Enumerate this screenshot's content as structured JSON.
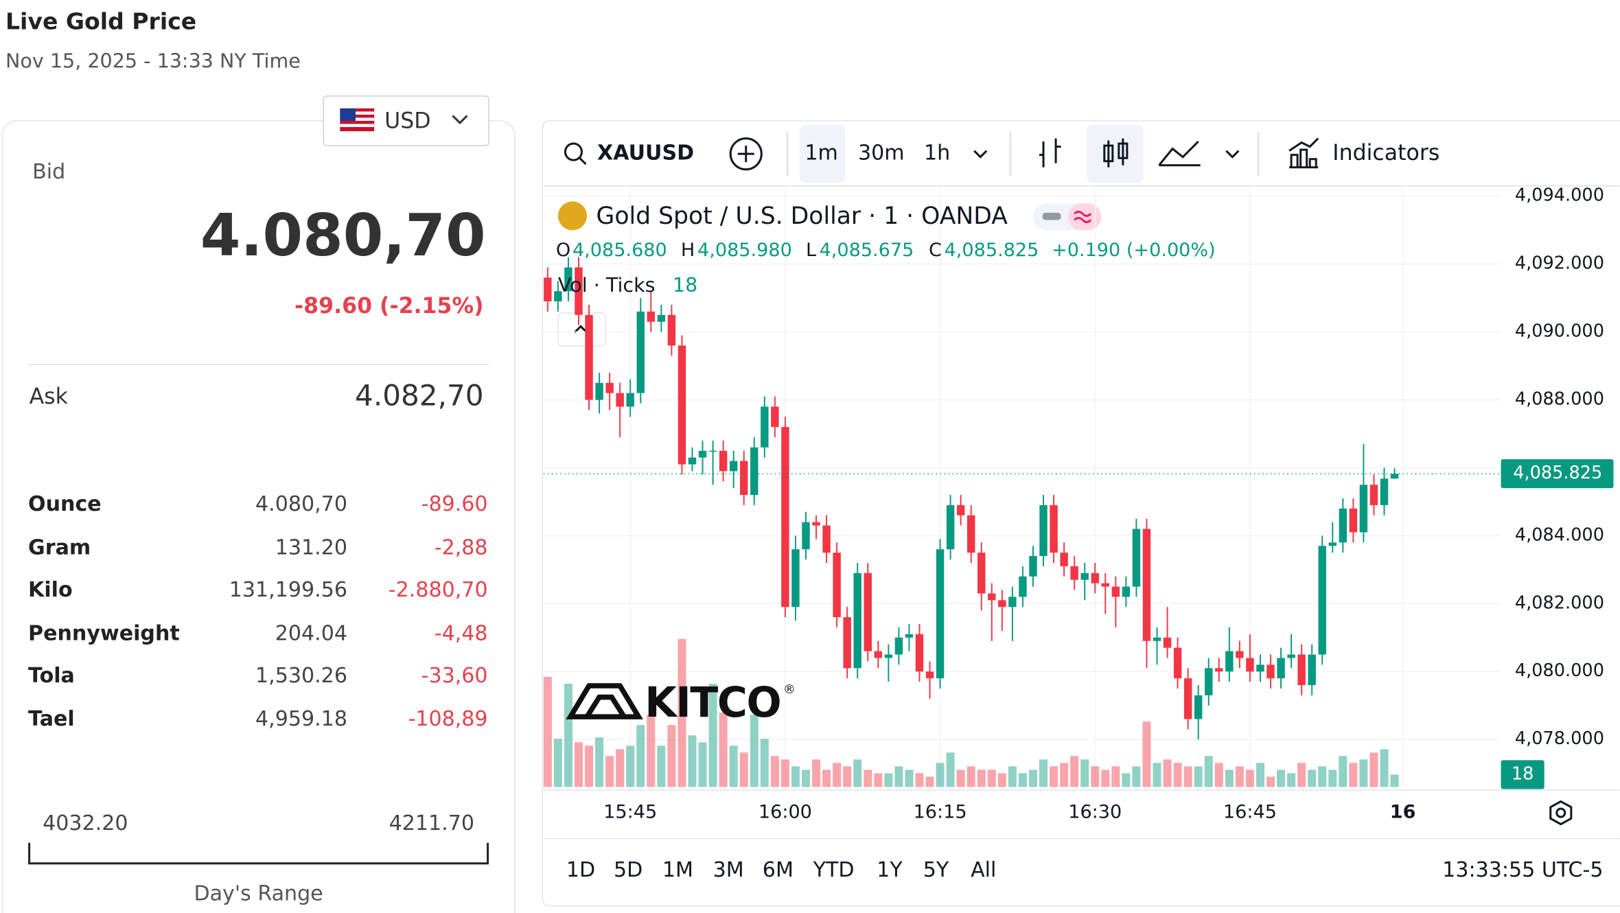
{
  "header": {
    "title": "Live Gold Price",
    "subtitle": "Nov 15, 2025 - 13:33 NY Time"
  },
  "currency": "USD",
  "quote": {
    "bid_label": "Bid",
    "bid": "4.080,70",
    "change": "-89.60 (-2.15%)",
    "ask_label": "Ask",
    "ask": "4.082,70"
  },
  "table": {
    "rows": [
      [
        "Ounce",
        "4.080,70",
        "-89.60"
      ],
      [
        "Gram",
        "131.20",
        "-2,88"
      ],
      [
        "Kilo",
        "131,199.56",
        "-2.880,70"
      ],
      [
        "Pennyweight",
        "204.04",
        "-4,48"
      ],
      [
        "Tola",
        "1,530.26",
        "-33,60"
      ],
      [
        "Tael",
        "4,959.18",
        "-108,89"
      ]
    ]
  },
  "range": {
    "low": "4032.20",
    "high": "4211.70",
    "label": "Day's Range"
  },
  "toolbar": {
    "symbol": "XAUUSD",
    "intervals": [
      "1m",
      "30m",
      "1h"
    ],
    "indicators": "Indicators"
  },
  "logo": {
    "text": "KITCO",
    "mark": "®"
  },
  "ranges": [
    "1D",
    "5D",
    "1M",
    "3M",
    "6M",
    "YTD",
    "1Y",
    "5Y",
    "All"
  ],
  "clock": "13:33:55 UTC-5",
  "chart_data": {
    "type": "candlestick",
    "title": "Gold Spot / U.S. Dollar · 1 · OANDA",
    "legend": {
      "o": "O",
      "open": "4,085.680",
      "h": "H",
      "high": "4,085.980",
      "l": "L",
      "low": "4,085.675",
      "c": "C",
      "close": "4,085.825",
      "change": "+0.190 (+0.00%)",
      "vol_label": "Vol · Ticks",
      "vol": "18"
    },
    "last_price_label": "4,085.825",
    "last_volume_label": "18",
    "up_color": "#089981",
    "down_color": "#f23645",
    "open": [
      4091.6,
      4090.9,
      4091.2,
      4091.9,
      4090.5,
      4088.0,
      4088.5,
      4088.2,
      4087.8,
      4088.2,
      4090.6,
      4090.3,
      4090.5,
      4089.6,
      4086.1,
      4086.3,
      4086.5,
      4086.5,
      4085.9,
      4086.2,
      4085.2,
      4086.6,
      4087.8,
      4087.2,
      4081.9,
      4083.6,
      4084.4,
      4084.3,
      4083.5,
      4081.6,
      4080.1,
      4082.9,
      4080.6,
      4080.4,
      4080.5,
      4081.0,
      4081.1,
      4080.0,
      4079.8,
      4083.6,
      4084.9,
      4084.6,
      4083.5,
      4082.3,
      4082.1,
      4081.9,
      4082.2,
      4082.8,
      4083.4,
      4084.9,
      4083.5,
      4083.1,
      4082.7,
      4082.9,
      4082.6,
      4082.5,
      4082.2,
      4082.5,
      4084.2,
      4080.9,
      4081.0,
      4080.7,
      4079.8,
      4078.6,
      4079.3,
      4080.1,
      4080.0,
      4080.6,
      4080.4,
      4080.0,
      4080.2,
      4079.8,
      4080.4,
      4080.5,
      4079.6,
      4080.5,
      4083.7,
      4083.8,
      4084.8,
      4084.1,
      4085.5,
      4084.9,
      4085.68
    ],
    "high": [
      4091.9,
      4091.5,
      4092.2,
      4092.2,
      4090.8,
      4088.8,
      4088.8,
      4088.5,
      4088.6,
      4091.0,
      4091.2,
      4090.8,
      4090.8,
      4089.9,
      4086.6,
      4086.8,
      4086.8,
      4086.8,
      4086.5,
      4086.5,
      4086.9,
      4088.1,
      4088.1,
      4087.5,
      4084.0,
      4084.7,
      4084.6,
      4084.6,
      4083.8,
      4081.9,
      4083.2,
      4083.2,
      4080.9,
      4080.8,
      4081.3,
      4081.4,
      4081.4,
      4080.3,
      4083.9,
      4085.2,
      4085.2,
      4084.9,
      4083.8,
      4082.6,
      4082.4,
      4082.5,
      4083.1,
      4083.7,
      4085.2,
      4085.2,
      4083.8,
      4083.4,
      4083.2,
      4083.2,
      4082.9,
      4082.8,
      4082.8,
      4084.5,
      4084.5,
      4081.3,
      4081.9,
      4081.0,
      4080.1,
      4079.6,
      4080.4,
      4080.4,
      4081.3,
      4080.9,
      4081.1,
      4080.5,
      4080.5,
      4080.7,
      4081.1,
      4080.8,
      4080.8,
      4084.0,
      4084.4,
      4085.1,
      4085.1,
      4086.7,
      4085.8,
      4086.0,
      4085.98
    ],
    "low": [
      4090.6,
      4090.6,
      4090.9,
      4090.2,
      4087.7,
      4087.6,
      4087.7,
      4086.9,
      4087.5,
      4087.9,
      4090.0,
      4090.0,
      4089.3,
      4085.8,
      4085.9,
      4085.8,
      4085.5,
      4085.6,
      4085.4,
      4084.9,
      4084.9,
      4086.3,
      4086.9,
      4081.6,
      4081.5,
      4083.3,
      4083.9,
      4083.2,
      4081.3,
      4079.8,
      4079.8,
      4080.3,
      4080.1,
      4079.7,
      4080.2,
      4080.6,
      4079.7,
      4079.2,
      4079.5,
      4083.3,
      4084.3,
      4083.2,
      4081.8,
      4080.9,
      4081.2,
      4080.9,
      4081.9,
      4082.5,
      4083.1,
      4083.2,
      4082.8,
      4082.4,
      4082.1,
      4082.3,
      4081.7,
      4081.3,
      4081.9,
      4082.2,
      4080.1,
      4080.2,
      4080.4,
      4079.5,
      4078.3,
      4078.0,
      4079.0,
      4079.7,
      4079.7,
      4080.1,
      4079.7,
      4079.7,
      4079.5,
      4079.5,
      4080.1,
      4079.3,
      4079.3,
      4080.2,
      4083.5,
      4083.5,
      4083.8,
      4083.8,
      4084.6,
      4084.6,
      4085.675
    ],
    "close": [
      4090.9,
      4091.2,
      4091.9,
      4090.5,
      4088.0,
      4088.5,
      4088.2,
      4087.8,
      4088.2,
      4090.6,
      4090.3,
      4090.5,
      4089.6,
      4086.1,
      4086.3,
      4086.5,
      4086.5,
      4085.9,
      4086.2,
      4085.2,
      4086.6,
      4087.8,
      4087.2,
      4081.9,
      4083.6,
      4084.4,
      4084.3,
      4083.5,
      4081.6,
      4080.1,
      4082.9,
      4080.6,
      4080.4,
      4080.5,
      4081.0,
      4081.1,
      4080.0,
      4079.8,
      4083.6,
      4084.9,
      4084.6,
      4083.5,
      4082.3,
      4082.1,
      4081.9,
      4082.2,
      4082.8,
      4083.4,
      4084.9,
      4083.5,
      4083.1,
      4082.7,
      4082.9,
      4082.6,
      4082.5,
      4082.2,
      4082.5,
      4084.2,
      4080.9,
      4081.0,
      4080.7,
      4079.8,
      4078.6,
      4079.3,
      4080.1,
      4080.0,
      4080.6,
      4080.4,
      4080.0,
      4080.2,
      4079.8,
      4080.4,
      4080.5,
      4079.6,
      4080.5,
      4083.7,
      4083.8,
      4084.8,
      4084.1,
      4085.5,
      4084.9,
      4085.68,
      4085.825
    ],
    "volume": [
      160,
      70,
      150,
      65,
      60,
      72,
      45,
      55,
      60,
      90,
      105,
      60,
      90,
      215,
      75,
      65,
      150,
      108,
      60,
      50,
      105,
      70,
      45,
      40,
      30,
      25,
      40,
      25,
      35,
      30,
      40,
      25,
      20,
      20,
      30,
      25,
      20,
      15,
      35,
      50,
      25,
      30,
      25,
      25,
      20,
      30,
      20,
      25,
      40,
      30,
      35,
      45,
      40,
      30,
      25,
      30,
      20,
      30,
      95,
      35,
      40,
      35,
      30,
      30,
      45,
      35,
      25,
      30,
      25,
      35,
      15,
      25,
      20,
      35,
      25,
      30,
      25,
      45,
      35,
      40,
      50,
      55,
      18
    ],
    "volume_ylim": [
      0,
      240
    ],
    "ylim": [
      4094.3,
      4076.6
    ],
    "yticks": [
      {
        "value": 4094,
        "label": "4,094.000"
      },
      {
        "value": 4092,
        "label": "4,092.000"
      },
      {
        "value": 4090,
        "label": "4,090.000"
      },
      {
        "value": 4088,
        "label": "4,088.000"
      },
      {
        "value": 4086,
        "label": "4,086.000"
      },
      {
        "value": 4084,
        "label": "4,084.000"
      },
      {
        "value": 4082,
        "label": "4,082.000"
      },
      {
        "value": 4080,
        "label": "4,080.000"
      },
      {
        "value": 4078,
        "label": "4,078.000"
      }
    ],
    "xlim": [
      -0.4,
      92.2
    ],
    "xticks": [
      {
        "value": 8,
        "label": "15:45"
      },
      {
        "value": 23,
        "label": "16:00"
      },
      {
        "value": 38,
        "label": "16:15"
      },
      {
        "value": 53,
        "label": "16:30"
      },
      {
        "value": 68,
        "label": "16:45"
      },
      {
        "value": 82.8,
        "label": "16"
      }
    ],
    "grid": true
  }
}
